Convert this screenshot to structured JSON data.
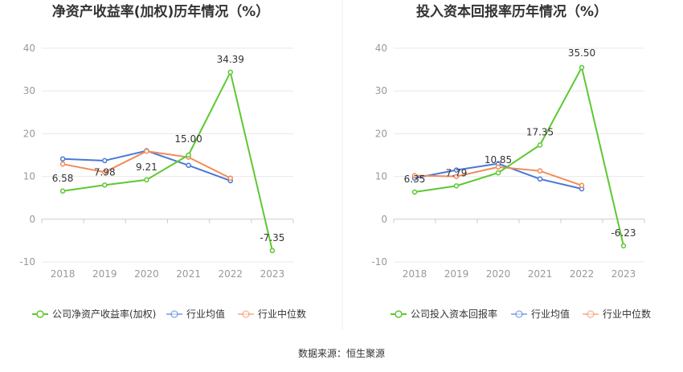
{
  "colors": {
    "company": "#5dc833",
    "avg": "#4a78d6",
    "median": "#f08c5a",
    "axis": "#cccccc",
    "grid": "#e8e8e8"
  },
  "source": "数据来源：恒生聚源",
  "chart_data": [
    {
      "type": "line",
      "title": "净资产收益率(加权)历年情况（%）",
      "categories": [
        "2018",
        "2019",
        "2020",
        "2021",
        "2022",
        "2023"
      ],
      "ylim": [
        -10,
        40
      ],
      "yticks": [
        "40",
        "30",
        "20",
        "10",
        "0",
        "-10"
      ],
      "series": [
        {
          "name": "公司净资产收益率(加权)",
          "values": [
            6.58,
            7.98,
            9.21,
            15.0,
            34.39,
            -7.35
          ],
          "labels": [
            "6.58",
            "7.98",
            "9.21",
            "15.00",
            "34.39",
            "-7.35"
          ]
        },
        {
          "name": "行业均值",
          "values": [
            14.1,
            13.7,
            16.0,
            12.6,
            9.0,
            null
          ]
        },
        {
          "name": "行业中位数",
          "values": [
            12.9,
            11.0,
            15.9,
            14.5,
            9.6,
            null
          ]
        }
      ]
    },
    {
      "type": "line",
      "title": "投入资本回报率历年情况（%）",
      "categories": [
        "2018",
        "2019",
        "2020",
        "2021",
        "2022",
        "2023"
      ],
      "ylim": [
        -10,
        40
      ],
      "yticks": [
        "40",
        "30",
        "20",
        "10",
        "0",
        "-10"
      ],
      "series": [
        {
          "name": "公司投入资本回报率",
          "values": [
            6.35,
            7.79,
            10.85,
            17.35,
            35.5,
            -6.23
          ],
          "labels": [
            "6.35",
            "7.79",
            "10.85",
            "17.35",
            "35.50",
            "-6.23"
          ]
        },
        {
          "name": "行业均值",
          "values": [
            9.6,
            11.5,
            13.0,
            9.4,
            7.1,
            null
          ]
        },
        {
          "name": "行业中位数",
          "values": [
            10.2,
            10.0,
            12.2,
            11.3,
            7.9,
            null
          ]
        }
      ]
    }
  ]
}
